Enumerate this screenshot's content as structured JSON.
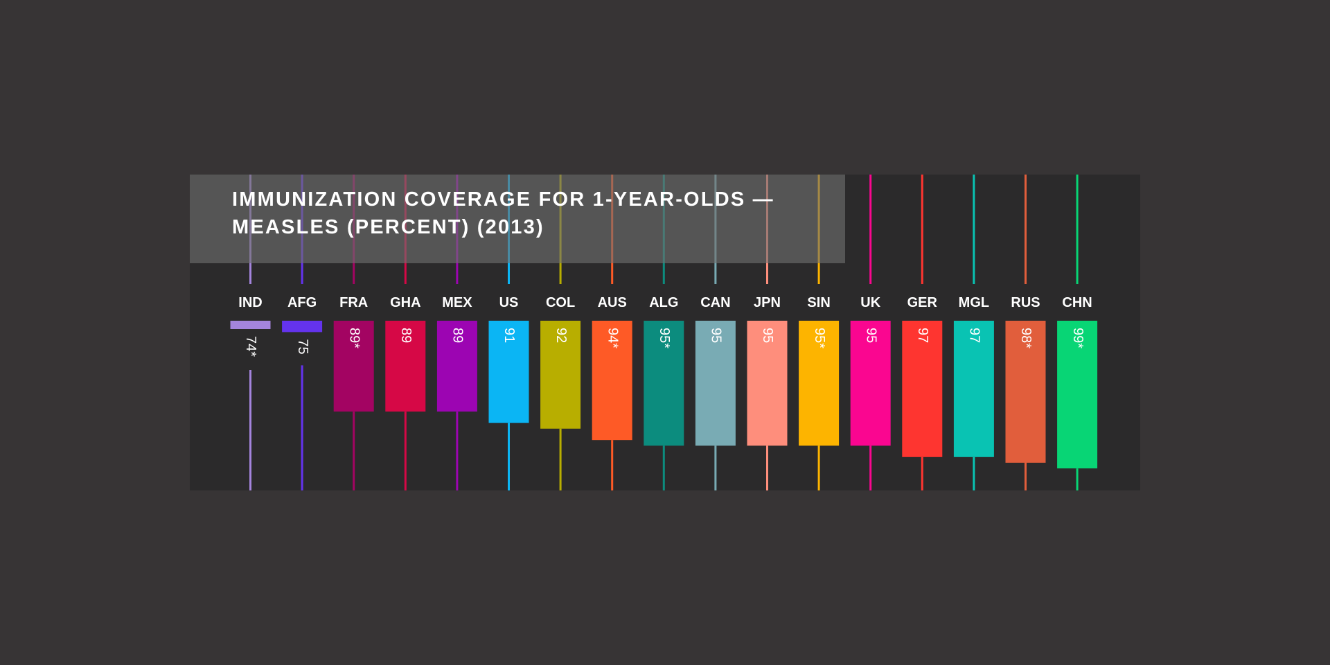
{
  "chart_data": {
    "type": "bar",
    "title": "IMMUNIZATION COVERAGE FOR 1-YEAR-OLDS — MEASLES (PERCENT) (2013)",
    "xlabel": "",
    "ylabel": "",
    "ylim": [
      73,
      100
    ],
    "categories": [
      "IND",
      "AFG",
      "FRA",
      "GHA",
      "MEX",
      "US",
      "COL",
      "AUS",
      "ALG",
      "CAN",
      "JPN",
      "SIN",
      "UK",
      "GER",
      "MGL",
      "RUS",
      "CHN"
    ],
    "values": [
      74,
      75,
      89,
      89,
      89,
      91,
      92,
      94,
      95,
      95,
      95,
      95,
      95,
      97,
      97,
      98,
      99
    ],
    "value_labels": [
      "74*",
      "75",
      "89*",
      "89",
      "89",
      "91",
      "92",
      "94*",
      "95*",
      "95",
      "95",
      "95*",
      "95",
      "97",
      "97",
      "98*",
      "99*"
    ],
    "colors": [
      "#a484dd",
      "#6433ee",
      "#a30462",
      "#d60846",
      "#9c05b2",
      "#0bb5f4",
      "#b8ae00",
      "#fe5a26",
      "#0c8c7e",
      "#79abb4",
      "#fe8e7c",
      "#fdb400",
      "#fa0690",
      "#fe3530",
      "#09c3b3",
      "#e15e3c",
      "#08d575"
    ],
    "grid": false,
    "legend": "none"
  }
}
